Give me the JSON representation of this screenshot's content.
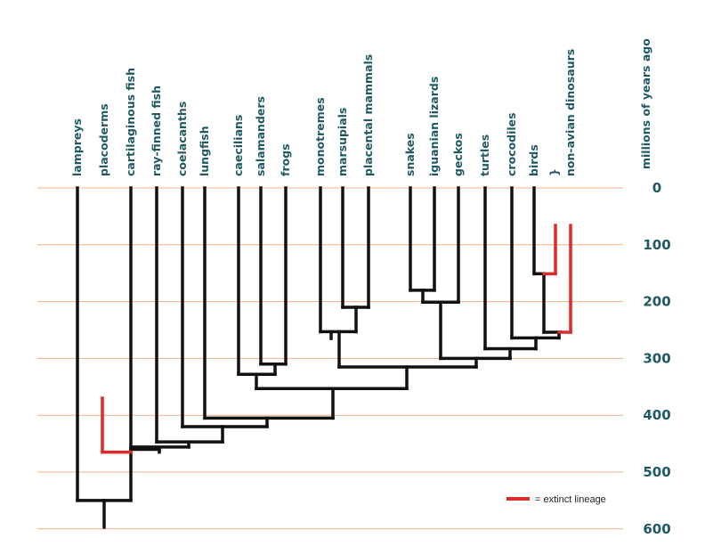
{
  "colors": {
    "branch": "#111111",
    "extinct": "#dd2b2b",
    "gridline": "#f2b08a",
    "label": "#1f5964"
  },
  "axis": {
    "title": "millions of years ago",
    "ticks": [
      "0",
      "100",
      "200",
      "300",
      "400",
      "500",
      "600"
    ]
  },
  "taxa": [
    "lampreys",
    "placoderms",
    "cartilaginous fish",
    "ray-finned fish",
    "coelacanths",
    "lungfish",
    "caecilians",
    "salamanders",
    "frogs",
    "monotremes",
    "marsupials",
    "placental mammals",
    "snakes",
    "iguanian lizards",
    "geckos",
    "turtles",
    "crocodiles",
    "birds",
    "non-avian dinosaurs"
  ],
  "bracket_glyph": "}",
  "legend": {
    "text": "= extinct lineage"
  }
}
